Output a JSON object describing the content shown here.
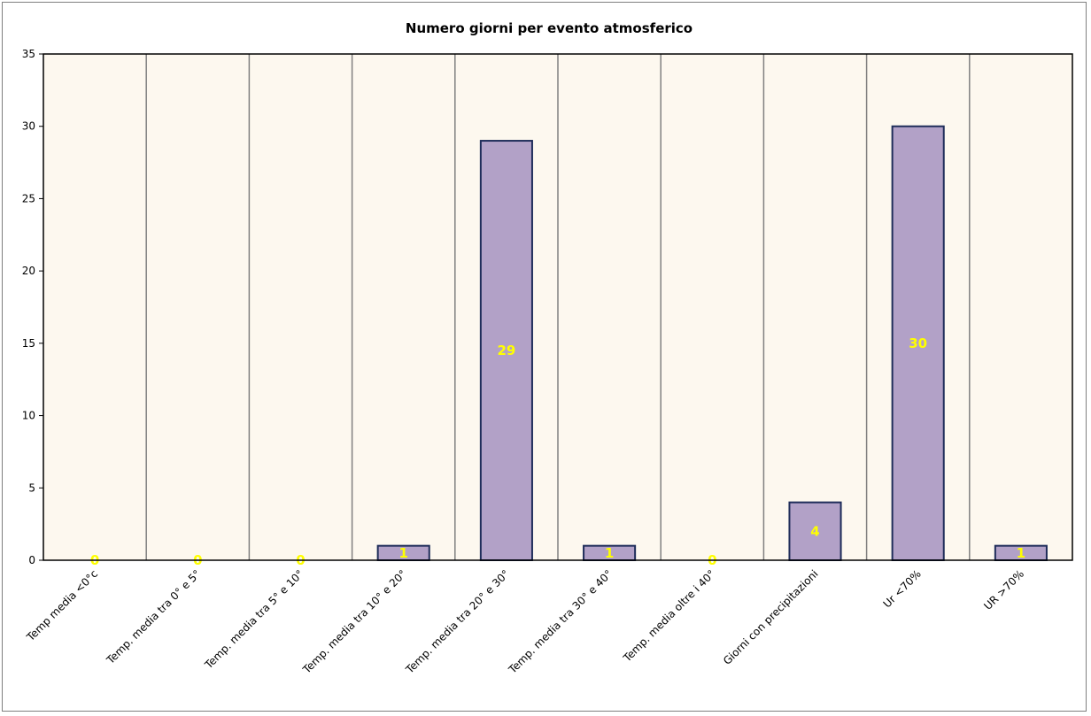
{
  "chart_data": {
    "type": "bar",
    "title": "Numero giorni  per evento atmosferico",
    "xlabel": "",
    "ylabel": "",
    "ylim": [
      0,
      35
    ],
    "yticks": [
      0,
      5,
      10,
      15,
      20,
      25,
      30,
      35
    ],
    "grid": "vertical",
    "legend": "none",
    "categories": [
      "Temp media <0°c",
      "Temp. media tra 0° e 5°",
      "Temp. media tra 5° e 10°",
      "Temp. media tra 10° e 20°",
      "Temp. media tra 20° e 30°",
      "Temp. media tra 30° e 40°",
      "Temp. media oltre i 40°",
      "Giorni con precipitazioni",
      "Ur  <70%",
      "UR >70%"
    ],
    "values": [
      0,
      0,
      0,
      1,
      29,
      1,
      0,
      4,
      30,
      1
    ],
    "colors": {
      "bar_fill": "#b2a1c7",
      "bar_stroke": "#1f2d5a",
      "plot_bg": "#fdf8ef",
      "gridline": "#808080",
      "data_label": "#ffff00"
    }
  }
}
